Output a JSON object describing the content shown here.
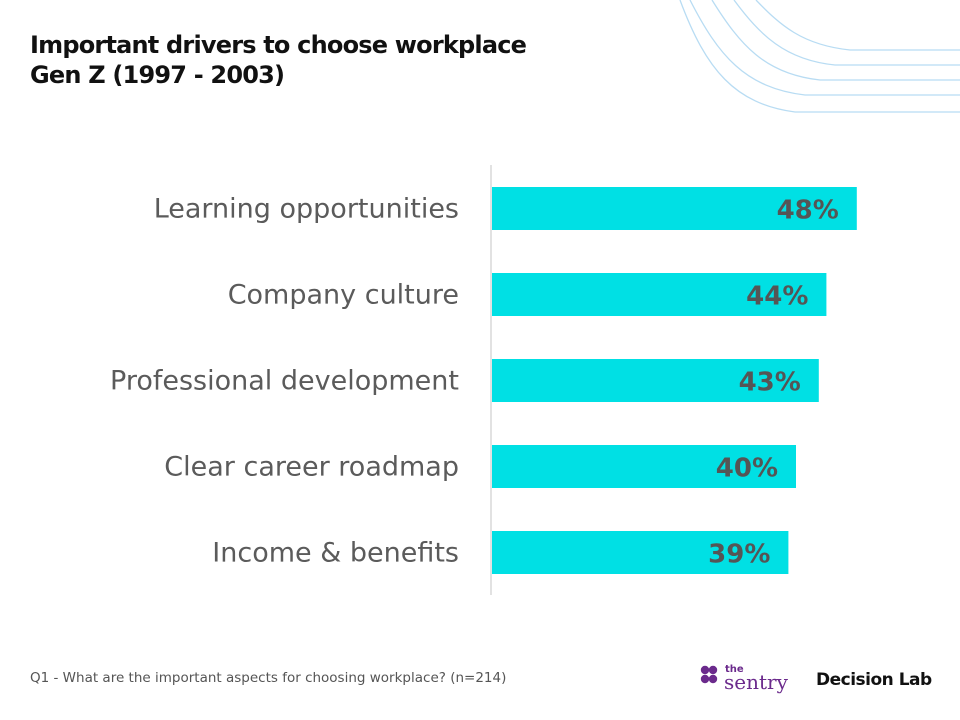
{
  "title_line1": "Important drivers to choose workplace",
  "title_line2": "Gen Z (1997 - 2003)",
  "footnote": "Q1 -  What are the important aspects for choosing workplace? (n=214)",
  "logos": {
    "sentry_small": "the",
    "sentry_main": "sentry",
    "decision_lab": "Decision Lab"
  },
  "colors": {
    "bar": "#00e0e4",
    "accent_purple": "#6b2a8c",
    "deco_line": "#b8dcf3"
  },
  "chart_data": {
    "type": "bar",
    "orientation": "horizontal",
    "categories": [
      "Learning opportunities",
      "Company culture",
      "Professional development",
      "Clear career roadmap",
      "Income & benefits"
    ],
    "values": [
      48,
      44,
      43,
      40,
      39
    ],
    "value_labels": [
      "48%",
      "44%",
      "43%",
      "40%",
      "39%"
    ],
    "unit": "%",
    "xlim": [
      0,
      100
    ],
    "grid": false,
    "legend": "none"
  }
}
